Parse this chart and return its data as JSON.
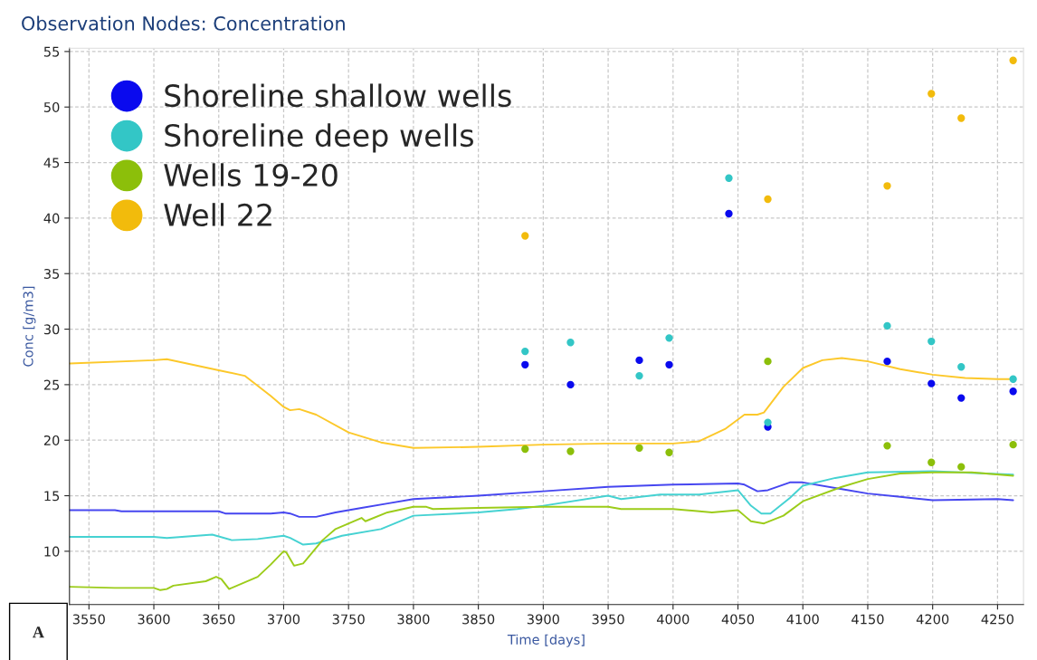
{
  "chart_data": {
    "type": "scatter",
    "title": "Observation Nodes: Concentration",
    "xlabel": "Time [days]",
    "ylabel": "Conc [g/m3]",
    "xlim": [
      3535,
      4270
    ],
    "xticks": [
      3550,
      3600,
      3650,
      3700,
      3750,
      3800,
      3850,
      3900,
      3950,
      4000,
      4050,
      4100,
      4150,
      4200,
      4250
    ],
    "ylim": [
      5.2,
      55.3
    ],
    "yticks": [
      10,
      15,
      20,
      25,
      30,
      35,
      40,
      45,
      50,
      55
    ],
    "grid": true,
    "legend": "top left",
    "annotations": [
      "A"
    ],
    "series": [
      {
        "type": "line",
        "marker": "none",
        "color": "#4646f0",
        "x": [
          3535,
          3570,
          3575,
          3650,
          3655,
          3690,
          3700,
          3705,
          3712,
          3725,
          3740,
          3760,
          3780,
          3800,
          3850,
          3900,
          3950,
          4000,
          4050,
          4055,
          4065,
          4073,
          4090,
          4100,
          4130,
          4150,
          4175,
          4200,
          4250,
          4262
        ],
        "values": [
          13.7,
          13.7,
          13.6,
          13.6,
          13.4,
          13.4,
          13.5,
          13.4,
          13.1,
          13.1,
          13.5,
          13.9,
          14.3,
          14.7,
          15.0,
          15.4,
          15.8,
          16.0,
          16.1,
          16.0,
          15.4,
          15.5,
          16.2,
          16.2,
          15.6,
          15.2,
          14.9,
          14.6,
          14.7,
          14.6
        ]
      },
      {
        "type": "line",
        "marker": "none",
        "color": "#45d2d2",
        "x": [
          3535,
          3600,
          3610,
          3645,
          3660,
          3680,
          3700,
          3705,
          3715,
          3725,
          3745,
          3775,
          3800,
          3850,
          3880,
          3900,
          3950,
          3960,
          3990,
          4020,
          4050,
          4060,
          4068,
          4075,
          4090,
          4100,
          4125,
          4150,
          4200,
          4262
        ],
        "values": [
          11.3,
          11.3,
          11.2,
          11.5,
          11.0,
          11.1,
          11.4,
          11.2,
          10.6,
          10.7,
          11.4,
          12.0,
          13.2,
          13.5,
          13.8,
          14.1,
          15.0,
          14.7,
          15.1,
          15.1,
          15.5,
          14.1,
          13.4,
          13.4,
          14.8,
          15.9,
          16.6,
          17.1,
          17.2,
          16.9
        ]
      },
      {
        "type": "line",
        "marker": "none",
        "color": "#9ccc1a",
        "x": [
          3535,
          3570,
          3600,
          3605,
          3610,
          3615,
          3640,
          3648,
          3652,
          3658,
          3680,
          3690,
          3700,
          3702,
          3708,
          3715,
          3730,
          3740,
          3760,
          3763,
          3780,
          3800,
          3810,
          3815,
          3850,
          3900,
          3950,
          3960,
          4000,
          4030,
          4050,
          4055,
          4060,
          4070,
          4085,
          4100,
          4130,
          4150,
          4175,
          4200,
          4230,
          4262
        ],
        "values": [
          6.8,
          6.7,
          6.7,
          6.5,
          6.6,
          6.9,
          7.3,
          7.7,
          7.5,
          6.6,
          7.7,
          8.8,
          10.0,
          9.9,
          8.7,
          8.9,
          11.0,
          12.0,
          13.0,
          12.7,
          13.5,
          14.0,
          14.0,
          13.8,
          13.9,
          14.0,
          14.0,
          13.8,
          13.8,
          13.5,
          13.7,
          13.2,
          12.7,
          12.5,
          13.2,
          14.5,
          15.8,
          16.5,
          17.0,
          17.1,
          17.1,
          16.8
        ]
      },
      {
        "type": "line",
        "marker": "none",
        "color": "#fcc82a",
        "x": [
          3535,
          3600,
          3610,
          3650,
          3670,
          3690,
          3700,
          3705,
          3712,
          3725,
          3750,
          3775,
          3800,
          3850,
          3900,
          3950,
          4000,
          4020,
          4040,
          4055,
          4065,
          4070,
          4085,
          4100,
          4115,
          4130,
          4150,
          4175,
          4200,
          4225,
          4250,
          4262
        ],
        "values": [
          26.9,
          27.2,
          27.3,
          26.3,
          25.8,
          24.0,
          23.0,
          22.7,
          22.8,
          22.3,
          20.7,
          19.8,
          19.3,
          19.4,
          19.6,
          19.7,
          19.7,
          19.9,
          21.0,
          22.3,
          22.3,
          22.5,
          24.8,
          26.5,
          27.2,
          27.4,
          27.1,
          26.4,
          25.9,
          25.6,
          25.5,
          25.5
        ]
      },
      {
        "marker": "circle",
        "name": "Shoreline shallow wells",
        "color": "#0a0aee",
        "x": [
          3886,
          3921,
          3974,
          3997,
          4043,
          4073,
          4165,
          4199,
          4222,
          4262
        ],
        "values": [
          26.8,
          25.0,
          27.2,
          26.8,
          40.4,
          21.2,
          27.1,
          25.1,
          23.8,
          24.4
        ]
      },
      {
        "marker": "circle",
        "name": "Shoreline deep wells",
        "color": "#33c6c6",
        "x": [
          3886,
          3921,
          3974,
          3997,
          4043,
          4073,
          4165,
          4199,
          4222,
          4262
        ],
        "values": [
          28.0,
          28.8,
          25.8,
          29.2,
          43.6,
          21.6,
          30.3,
          28.9,
          26.6,
          25.5
        ]
      },
      {
        "marker": "circle",
        "name": "Wells 19-20",
        "color": "#8cbf0a",
        "x": [
          3886,
          3921,
          3974,
          3997,
          4073,
          4165,
          4199,
          4222,
          4262
        ],
        "values": [
          19.2,
          19.0,
          19.3,
          18.9,
          27.1,
          19.5,
          18.0,
          17.6,
          19.6
        ]
      },
      {
        "marker": "circle",
        "name": "Well 22",
        "color": "#f2bb0c",
        "x": [
          3886,
          4073,
          4165,
          4199,
          4222,
          4262
        ],
        "values": [
          38.4,
          41.7,
          42.9,
          51.2,
          49.0,
          54.2
        ]
      }
    ]
  }
}
